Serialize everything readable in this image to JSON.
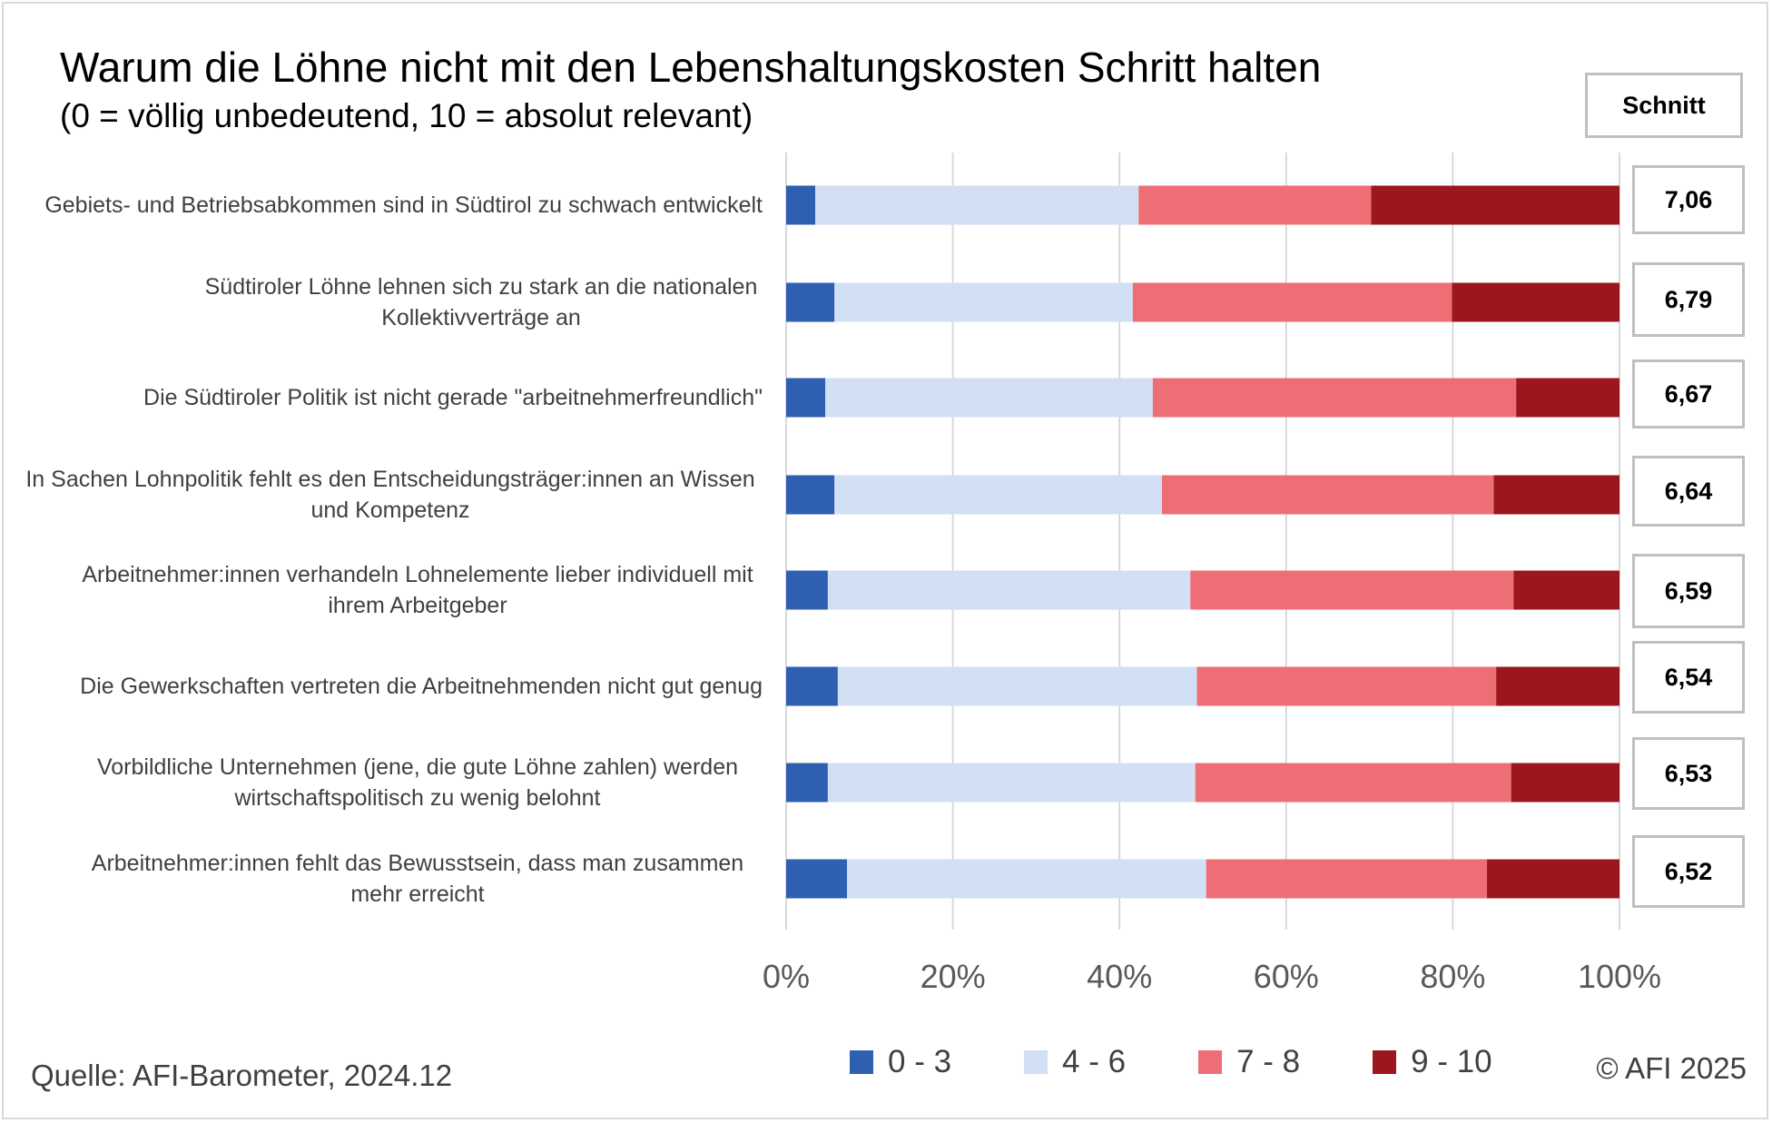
{
  "title": "Warum die Löhne nicht mit den Lebenshaltungskosten Schritt halten",
  "subtitle": "(0 = völlig unbedeutend, 10 = absolut relevant)",
  "schnitt_header": "Schnitt",
  "source": "Quelle: AFI-Barometer, 2024.12",
  "copyright": "© AFI 2025",
  "chart_data": {
    "type": "bar",
    "orientation": "horizontal",
    "stacked": "100%",
    "categories": [
      "Gebiets- und Betriebsabkommen sind in Südtirol zu schwach entwickelt",
      "Südtiroler Löhne lehnen sich zu stark an die nationalen Kollektivverträge an",
      "Die Südtiroler Politik ist nicht gerade \"arbeitnehmerfreundlich\"",
      "In Sachen Lohnpolitik fehlt es den Entscheidungsträger:innen an Wissen und Kompetenz",
      "Arbeitnehmer:innen verhandeln Lohnelemente lieber individuell mit ihrem Arbeitgeber",
      "Die Gewerkschaften vertreten die Arbeitnehmenden nicht gut genug",
      "Vorbildliche Unternehmen (jene, die gute Löhne zahlen) werden wirtschaftspolitisch zu wenig belohnt",
      "Arbeitnehmer:innen fehlt das Bewusstsein, dass man zusammen mehr erreicht"
    ],
    "series": [
      {
        "name": "0 - 3",
        "color": "#2e5fb0",
        "values": [
          3.5,
          5.8,
          4.7,
          5.8,
          5.0,
          6.2,
          5.0,
          7.3
        ]
      },
      {
        "name": "4 - 6",
        "color": "#d2dff4",
        "values": [
          38.8,
          35.8,
          39.3,
          39.3,
          43.5,
          43.1,
          44.1,
          43.1
        ]
      },
      {
        "name": "7 - 8",
        "color": "#ee6e76",
        "values": [
          27.9,
          38.3,
          43.6,
          39.8,
          38.8,
          35.9,
          37.9,
          33.7
        ]
      },
      {
        "name": "9 - 10",
        "color": "#9c161e",
        "values": [
          29.8,
          20.1,
          12.4,
          15.1,
          12.7,
          14.8,
          13.0,
          15.9
        ]
      }
    ],
    "averages": [
      "7,06",
      "6,79",
      "6,67",
      "6,64",
      "6,59",
      "6,54",
      "6,53",
      "6,52"
    ],
    "x_ticks": [
      "0%",
      "20%",
      "40%",
      "60%",
      "80%",
      "100%"
    ],
    "xlim": [
      0,
      100
    ],
    "grid": true,
    "legend_position": "bottom"
  }
}
